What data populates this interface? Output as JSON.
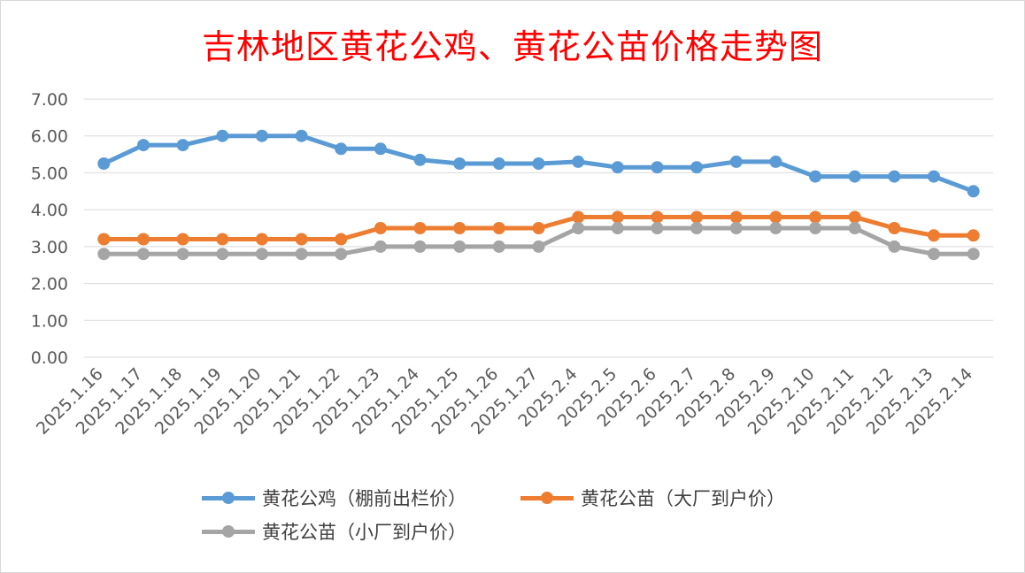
{
  "chart_data": {
    "type": "line",
    "title": "吉林地区黄花公鸡、黄花公苗价格走势图",
    "categories": [
      "2025.1.16",
      "2025.1.17",
      "2025.1.18",
      "2025.1.19",
      "2025.1.20",
      "2025.1.21",
      "2025.1.22",
      "2025.1.23",
      "2025.1.24",
      "2025.1.25",
      "2025.1.26",
      "2025.1.27",
      "2025.2.4",
      "2025.2.5",
      "2025.2.6",
      "2025.2.7",
      "2025.2.8",
      "2025.2.9",
      "2025.2.10",
      "2025.2.11",
      "2025.2.12",
      "2025.2.13",
      "2025.2.14"
    ],
    "yticks": [
      "0.00",
      "1.00",
      "2.00",
      "3.00",
      "4.00",
      "5.00",
      "6.00",
      "7.00"
    ],
    "ylim": [
      0,
      7
    ],
    "grid": true,
    "legend_position": "bottom",
    "series": [
      {
        "name": "黄花公鸡（棚前出栏价）",
        "color": "#5b9bd5",
        "values": [
          5.25,
          5.75,
          5.75,
          6.0,
          6.0,
          6.0,
          5.65,
          5.65,
          5.35,
          5.25,
          5.25,
          5.25,
          5.3,
          5.15,
          5.15,
          5.15,
          5.3,
          5.3,
          4.9,
          4.9,
          4.9,
          4.9,
          4.5
        ]
      },
      {
        "name": "黄花公苗（大厂到户价）",
        "color": "#ed7d31",
        "values": [
          3.2,
          3.2,
          3.2,
          3.2,
          3.2,
          3.2,
          3.2,
          3.5,
          3.5,
          3.5,
          3.5,
          3.5,
          3.8,
          3.8,
          3.8,
          3.8,
          3.8,
          3.8,
          3.8,
          3.8,
          3.5,
          3.3,
          3.3
        ]
      },
      {
        "name": "黄花公苗（小厂到户价）",
        "color": "#a5a5a5",
        "values": [
          2.8,
          2.8,
          2.8,
          2.8,
          2.8,
          2.8,
          2.8,
          3.0,
          3.0,
          3.0,
          3.0,
          3.0,
          3.5,
          3.5,
          3.5,
          3.5,
          3.5,
          3.5,
          3.5,
          3.5,
          3.0,
          2.8,
          2.8
        ]
      }
    ]
  }
}
